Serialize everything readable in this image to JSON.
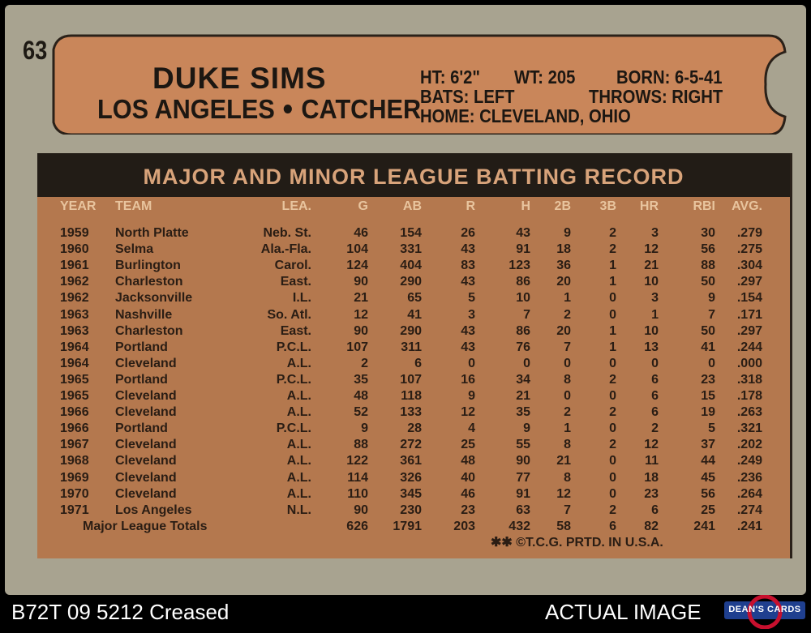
{
  "card": {
    "number": "63",
    "player_name": "DUKE SIMS",
    "team": "LOS ANGELES",
    "position": "CATCHER",
    "ht": "HT: 6'2\"",
    "wt": "WT: 205",
    "born": "BORN: 6-5-41",
    "bats": "BATS: LEFT",
    "throws": "THROWS: RIGHT",
    "home": "HOME: CLEVELAND, OHIO"
  },
  "stats": {
    "title": "MAJOR AND MINOR LEAGUE BATTING RECORD",
    "headers": [
      "YEAR",
      "TEAM",
      "LEA.",
      "G",
      "AB",
      "R",
      "H",
      "2B",
      "3B",
      "HR",
      "RBI",
      "AVG."
    ],
    "rows": [
      [
        "1959",
        "North Platte",
        "Neb. St.",
        "46",
        "154",
        "26",
        "43",
        "9",
        "2",
        "3",
        "30",
        ".279"
      ],
      [
        "1960",
        "Selma",
        "Ala.-Fla.",
        "104",
        "331",
        "43",
        "91",
        "18",
        "2",
        "12",
        "56",
        ".275"
      ],
      [
        "1961",
        "Burlington",
        "Carol.",
        "124",
        "404",
        "83",
        "123",
        "36",
        "1",
        "21",
        "88",
        ".304"
      ],
      [
        "1962",
        "Charleston",
        "East.",
        "90",
        "290",
        "43",
        "86",
        "20",
        "1",
        "10",
        "50",
        ".297"
      ],
      [
        "1962",
        "Jacksonville",
        "I.L.",
        "21",
        "65",
        "5",
        "10",
        "1",
        "0",
        "3",
        "9",
        ".154"
      ],
      [
        "1963",
        "Nashville",
        "So. Atl.",
        "12",
        "41",
        "3",
        "7",
        "2",
        "0",
        "1",
        "7",
        ".171"
      ],
      [
        "1963",
        "Charleston",
        "East.",
        "90",
        "290",
        "43",
        "86",
        "20",
        "1",
        "10",
        "50",
        ".297"
      ],
      [
        "1964",
        "Portland",
        "P.C.L.",
        "107",
        "311",
        "43",
        "76",
        "7",
        "1",
        "13",
        "41",
        ".244"
      ],
      [
        "1964",
        "Cleveland",
        "A.L.",
        "2",
        "6",
        "0",
        "0",
        "0",
        "0",
        "0",
        "0",
        ".000"
      ],
      [
        "1965",
        "Portland",
        "P.C.L.",
        "35",
        "107",
        "16",
        "34",
        "8",
        "2",
        "6",
        "23",
        ".318"
      ],
      [
        "1965",
        "Cleveland",
        "A.L.",
        "48",
        "118",
        "9",
        "21",
        "0",
        "0",
        "6",
        "15",
        ".178"
      ],
      [
        "1966",
        "Cleveland",
        "A.L.",
        "52",
        "133",
        "12",
        "35",
        "2",
        "2",
        "6",
        "19",
        ".263"
      ],
      [
        "1966",
        "Portland",
        "P.C.L.",
        "9",
        "28",
        "4",
        "9",
        "1",
        "0",
        "2",
        "5",
        ".321"
      ],
      [
        "1967",
        "Cleveland",
        "A.L.",
        "88",
        "272",
        "25",
        "55",
        "8",
        "2",
        "12",
        "37",
        ".202"
      ],
      [
        "1968",
        "Cleveland",
        "A.L.",
        "122",
        "361",
        "48",
        "90",
        "21",
        "0",
        "11",
        "44",
        ".249"
      ],
      [
        "1969",
        "Cleveland",
        "A.L.",
        "114",
        "326",
        "40",
        "77",
        "8",
        "0",
        "18",
        "45",
        ".236"
      ],
      [
        "1970",
        "Cleveland",
        "A.L.",
        "110",
        "345",
        "46",
        "91",
        "12",
        "0",
        "23",
        "56",
        ".264"
      ],
      [
        "1971",
        "Los Angeles",
        "N.L.",
        "90",
        "230",
        "23",
        "63",
        "7",
        "2",
        "6",
        "25",
        ".274"
      ]
    ],
    "totals_label": "Major League Totals",
    "totals": [
      "626",
      "1791",
      "203",
      "432",
      "58",
      "6",
      "82",
      "241",
      ".241"
    ],
    "footer": "✱✱ ©T.C.G. PRTD. IN U.S.A."
  },
  "listing": {
    "left_caption": "B72T 09 5212 Creased",
    "right_caption": "ACTUAL IMAGE",
    "logo_text": "DEAN'S CARDS"
  },
  "colors": {
    "card_gray": "#a8a390",
    "banner_orange": "#c9865a",
    "stats_orange": "#b4784e",
    "title_bar": "#221c16"
  }
}
